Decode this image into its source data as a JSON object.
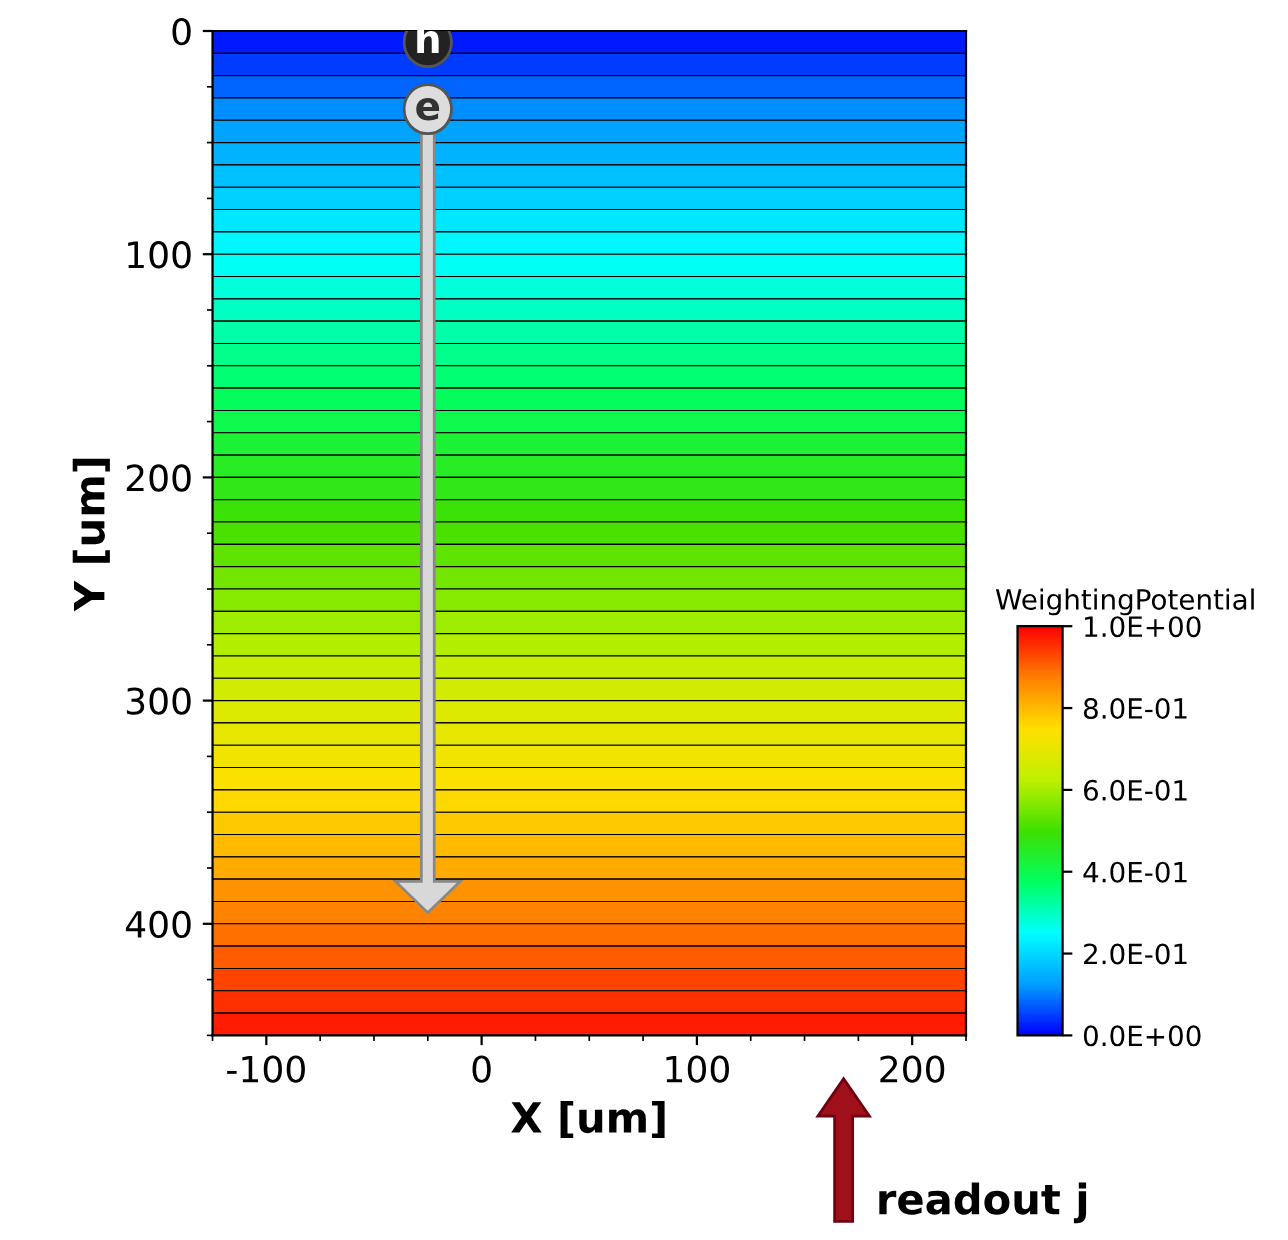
{
  "chart_data": {
    "type": "heatmap",
    "xlabel": "X [um]",
    "ylabel": "Y [um]",
    "clabel": "WeightingPotential",
    "xlim": [
      -125,
      225
    ],
    "ylim": [
      450,
      0
    ],
    "xticks": [
      -100,
      0,
      100,
      200
    ],
    "yticks": [
      0,
      100,
      200,
      300,
      400
    ],
    "clim": [
      0,
      1
    ],
    "cticks": [
      {
        "value": 0,
        "label": "0.0E+00"
      },
      {
        "value": 0.2,
        "label": "2.0E-01"
      },
      {
        "value": 0.4,
        "label": "4.0E-01"
      },
      {
        "value": 0.6,
        "label": "6.0E-01"
      },
      {
        "value": 0.8,
        "label": "8.0E-01"
      },
      {
        "value": 1,
        "label": "1.0E+00"
      }
    ],
    "cells": [
      [
        0.02
      ],
      [
        0.05
      ],
      [
        0.08
      ],
      [
        0.11
      ],
      [
        0.13
      ],
      [
        0.15
      ],
      [
        0.17
      ],
      [
        0.19
      ],
      [
        0.22
      ],
      [
        0.24
      ],
      [
        0.26
      ],
      [
        0.28
      ],
      [
        0.3
      ],
      [
        0.32
      ],
      [
        0.34
      ],
      [
        0.36
      ],
      [
        0.38
      ],
      [
        0.4
      ],
      [
        0.43
      ],
      [
        0.45
      ],
      [
        0.47
      ],
      [
        0.49
      ],
      [
        0.51
      ],
      [
        0.53
      ],
      [
        0.55
      ],
      [
        0.57
      ],
      [
        0.59
      ],
      [
        0.61
      ],
      [
        0.64
      ],
      [
        0.66
      ],
      [
        0.68
      ],
      [
        0.7
      ],
      [
        0.72
      ],
      [
        0.74
      ],
      [
        0.76
      ],
      [
        0.78
      ],
      [
        0.8
      ],
      [
        0.82
      ],
      [
        0.85
      ],
      [
        0.87
      ],
      [
        0.89
      ],
      [
        0.91
      ],
      [
        0.93
      ],
      [
        0.95
      ],
      [
        0.97
      ]
    ],
    "annotations": [
      {
        "text": "h",
        "x": -25,
        "y": 5
      },
      {
        "text": "e",
        "x": -25,
        "y": 35
      },
      "readout j"
    ]
  }
}
